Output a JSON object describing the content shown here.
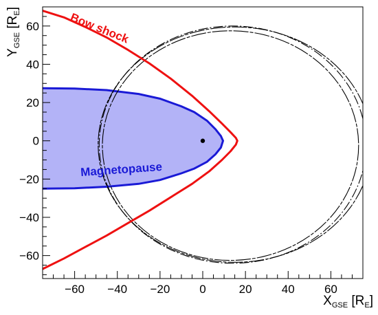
{
  "chart_data": {
    "type": "line",
    "xlim": [
      -75,
      75
    ],
    "ylim": [
      -72,
      70
    ],
    "x_ticks": [
      -60,
      -40,
      -20,
      0,
      20,
      40,
      60
    ],
    "y_ticks": [
      -60,
      -40,
      -20,
      0,
      20,
      40,
      60
    ],
    "x_tick_labels": [
      "−60",
      "−40",
      "−20",
      "0",
      "20",
      "40",
      "60"
    ],
    "y_tick_labels": [
      "−60",
      "−40",
      "−20",
      "0",
      "20",
      "40",
      "60"
    ],
    "xlabel": {
      "main": "X",
      "sub": "GSE",
      "unit_open": " [R",
      "unit_sub": "E",
      "unit_close": "]"
    },
    "ylabel": {
      "main": "Y",
      "sub": "GSE",
      "unit_open": " [R",
      "unit_sub": "E",
      "unit_close": "]"
    },
    "grid": false,
    "colors": {
      "bow_shock": "#ee1111",
      "magnetopause_line": "#1a1ad6",
      "magnetopause_fill": "#b3b3f7",
      "orbit": "#000000",
      "earth": "#000000"
    },
    "annotations": [
      {
        "id": "bow-shock-label",
        "text": "Bow shock",
        "x": -49,
        "y": 57,
        "rotate": 22,
        "color": "#ee1111"
      },
      {
        "id": "magnetopause-label",
        "text": "Magnetopause",
        "x": -38,
        "y": -17,
        "rotate": -4,
        "color": "#1a1ad6"
      }
    ],
    "series": [
      {
        "name": "Bow shock",
        "kind": "line",
        "x": [
          -75,
          -65,
          -55,
          -45,
          -35,
          -25,
          -15,
          -5,
          3,
          9,
          13,
          15.5,
          16.2,
          15.5,
          13,
          9,
          3,
          -5,
          -15,
          -25,
          -35,
          -45,
          -55,
          -65,
          -75
        ],
        "y": [
          68,
          64.5,
          59.5,
          54,
          47.5,
          40.5,
          32.5,
          23.5,
          15.5,
          9,
          4.5,
          1.5,
          0,
          -2,
          -5.5,
          -10,
          -16,
          -22.5,
          -29.5,
          -36.5,
          -43,
          -49.5,
          -55.5,
          -61.5,
          -67
        ]
      },
      {
        "name": "Magnetopause",
        "kind": "filled",
        "x": [
          -75,
          -60,
          -45,
          -30,
          -20,
          -10,
          -4,
          2,
          6,
          8.5,
          9.5,
          8.5,
          6,
          2,
          -4,
          -10,
          -20,
          -30,
          -45,
          -60,
          -75
        ],
        "y": [
          27.5,
          27.3,
          26.5,
          24.5,
          22,
          18,
          15,
          10.5,
          6,
          2.5,
          0,
          -3.5,
          -7,
          -11,
          -14.5,
          -17,
          -20.5,
          -22.5,
          -24,
          -24.8,
          -25
        ]
      },
      {
        "name": "Orbit 1",
        "kind": "ellipse",
        "cx": 13,
        "cy": -2.5,
        "rx": 60,
        "ry": 60
      },
      {
        "name": "Orbit 2",
        "kind": "ellipse",
        "cx": 14,
        "cy": -2,
        "rx": 62.5,
        "ry": 62
      },
      {
        "name": "Orbit 3",
        "kind": "ellipse",
        "cx": 15,
        "cy": -2,
        "rx": 64,
        "ry": 61.5
      },
      {
        "name": "Earth",
        "kind": "point",
        "x": [
          0
        ],
        "y": [
          0
        ]
      }
    ]
  }
}
